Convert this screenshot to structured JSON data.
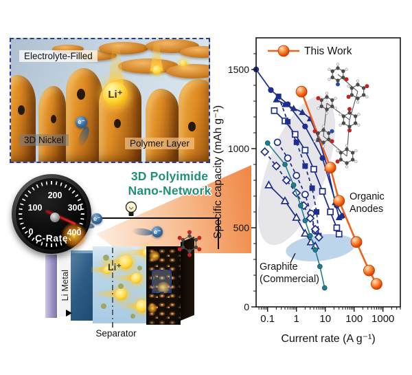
{
  "colors": {
    "accent_orange": "#f2611c",
    "navy": "#1d2e8e",
    "teal": "#1f7d8e",
    "title_teal": "#1e9077",
    "region_gray": "#e2e2e6",
    "region_blue": "#b9d3ea"
  },
  "scene": {
    "panel_top": {
      "label_electrolyte": "Electrolyte-Filled",
      "label_nickel": "3D Nickel",
      "label_polymer": "Polymer Layer",
      "ion": "Li⁺",
      "electron": "e⁻"
    },
    "gauge": {
      "title": "C-Rate",
      "tick_labels": [
        "0",
        "100",
        "200",
        "300",
        "400"
      ]
    },
    "headline": {
      "line1": "3D Polyimide",
      "line2": "Nano-Network"
    },
    "battery": {
      "anode": "Li Metal",
      "ion": "Li⁺",
      "separator": "Separator",
      "electron": "e⁻"
    }
  },
  "chart_data": {
    "type": "line",
    "xlabel": "Current rate (A g⁻¹)",
    "ylabel": "Specific capacity (mAh g⁻¹)",
    "x_scale": "log",
    "xlim": [
      0.04,
      4000
    ],
    "ylim": [
      0,
      1700
    ],
    "x_tick_values": [
      0.1,
      1,
      10,
      100,
      1000
    ],
    "x_tick_labels": [
      "0.1",
      "1",
      "10",
      "100",
      "1000"
    ],
    "y_tick_values": [
      0,
      500,
      1000,
      1500
    ],
    "grid": false,
    "legend": {
      "entries": [
        "This Work"
      ],
      "position": "top-left-inside"
    },
    "series": [
      {
        "name": "This Work",
        "color": "#f2611c",
        "line": "solid",
        "marker": "sphere",
        "points": [
          [
            1.5,
            1360
          ],
          [
            15,
            880
          ],
          [
            30,
            670
          ],
          [
            120,
            410
          ],
          [
            330,
            230
          ],
          [
            600,
            145
          ]
        ]
      },
      {
        "name": "Organic anode 1",
        "color": "#1d2e8e",
        "line": "solid",
        "marker": "circle",
        "points": [
          [
            0.04,
            1500
          ],
          [
            0.13,
            1370
          ],
          [
            0.5,
            1280
          ],
          [
            2,
            1140
          ],
          [
            8,
            940
          ],
          [
            25,
            640
          ],
          [
            40,
            575
          ]
        ]
      },
      {
        "name": "Organic anode 2",
        "color": "#1d2e8e",
        "line": "solid",
        "marker": "triangle",
        "points": [
          [
            0.2,
            1310
          ],
          [
            0.4,
            1280
          ],
          [
            0.8,
            1255
          ],
          [
            1.6,
            1230
          ],
          [
            3,
            1190
          ],
          [
            6,
            1060
          ],
          [
            12,
            880
          ],
          [
            22,
            660
          ],
          [
            30,
            565
          ]
        ]
      },
      {
        "name": "Organic anode 3",
        "color": "#1d2e8e",
        "line": "solid",
        "marker": "square-open",
        "points": [
          [
            0.17,
            1240
          ],
          [
            0.4,
            1175
          ],
          [
            0.9,
            1090
          ],
          [
            2,
            990
          ],
          [
            4,
            870
          ],
          [
            8,
            730
          ],
          [
            15,
            600
          ],
          [
            25,
            500
          ],
          [
            30,
            460
          ]
        ]
      },
      {
        "name": "Organic anode 4",
        "color": "#1d2e8e",
        "line": "dashed",
        "marker": "square",
        "points": [
          [
            0.24,
            1330
          ],
          [
            0.5,
            1170
          ],
          [
            1,
            1040
          ],
          [
            2,
            890
          ],
          [
            3.5,
            750
          ],
          [
            5,
            600
          ],
          [
            6,
            450
          ]
        ]
      },
      {
        "name": "Organic anode 5",
        "color": "#1d2e8e",
        "line": "dashed",
        "marker": "circle-open",
        "points": [
          [
            0.22,
            1040
          ],
          [
            0.5,
            940
          ],
          [
            1,
            830
          ],
          [
            2,
            710
          ],
          [
            3.2,
            590
          ],
          [
            4.5,
            480
          ]
        ]
      },
      {
        "name": "Organic anode 6",
        "color": "#1d2e8e",
        "line": "dashed",
        "marker": "diamond-open",
        "points": [
          [
            0.08,
            980
          ],
          [
            0.2,
            890
          ],
          [
            0.45,
            800
          ],
          [
            1,
            720
          ],
          [
            1.8,
            640
          ],
          [
            3,
            560
          ],
          [
            4.5,
            490
          ],
          [
            6,
            440
          ]
        ]
      },
      {
        "name": "Organic anode 7",
        "color": "#1d2e8e",
        "line": "solid",
        "marker": "triangle-open",
        "points": [
          [
            0.11,
            770
          ],
          [
            0.4,
            670
          ],
          [
            1,
            565
          ],
          [
            2,
            465
          ],
          [
            3.2,
            410
          ],
          [
            4.5,
            385
          ]
        ]
      },
      {
        "name": "Graphite",
        "color": "#1f7d8e",
        "line": "solid",
        "marker": "circle-small",
        "points": [
          [
            0.1,
            1035
          ],
          [
            0.4,
            900
          ],
          [
            0.8,
            770
          ],
          [
            1.4,
            640
          ],
          [
            2,
            545
          ],
          [
            3,
            450
          ],
          [
            4.5,
            360
          ],
          [
            6.5,
            255
          ],
          [
            9.5,
            120
          ]
        ]
      }
    ],
    "annotations": [
      {
        "id": "organic",
        "lines": [
          "Organic",
          "Anodes"
        ]
      },
      {
        "id": "graphite",
        "lines": [
          "Graphite",
          "(Commercial)"
        ]
      }
    ],
    "regions": [
      {
        "id": "organic-anodes-cluster",
        "shape": "ellipse",
        "color": "#e2e2e6"
      },
      {
        "id": "graphite-commercial",
        "shape": "ellipse",
        "color": "#b9d3ea"
      }
    ]
  }
}
